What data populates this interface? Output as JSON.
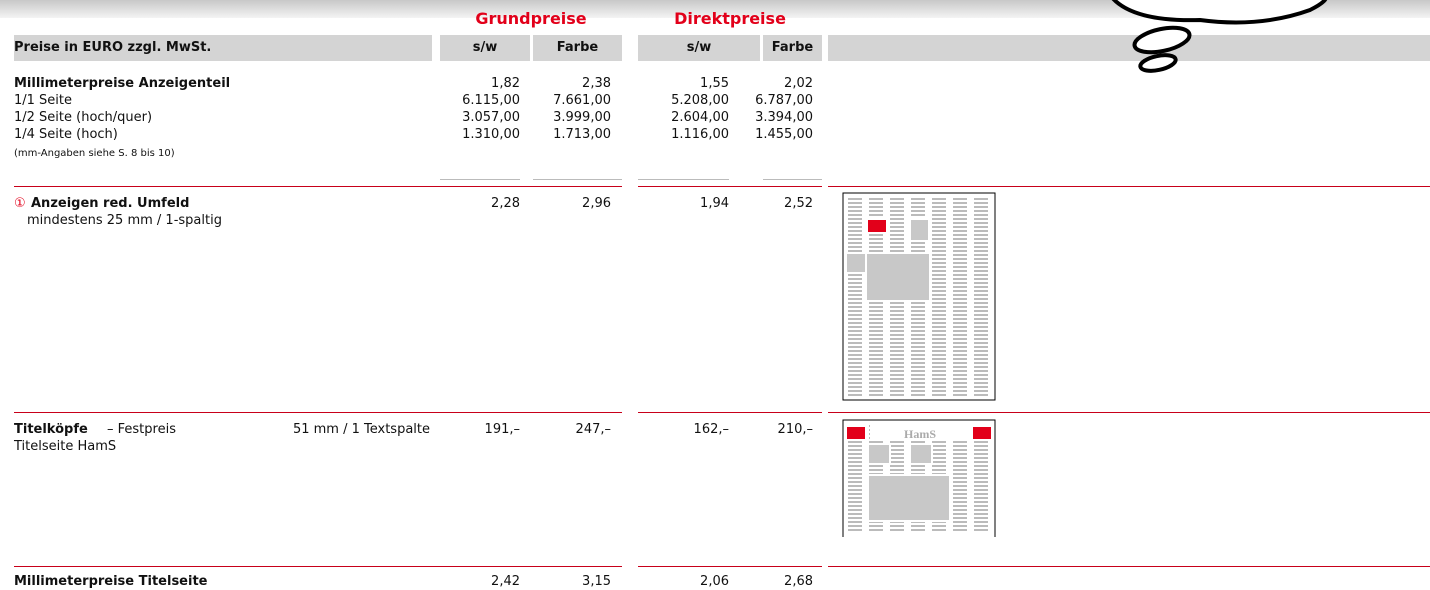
{
  "header": {
    "groups": [
      "Grundpreise",
      "Direktpreise"
    ],
    "label": "Preise in EURO zzgl. MwSt.",
    "columns": [
      "s/w",
      "Farbe",
      "s/w",
      "Farbe"
    ]
  },
  "sections": [
    {
      "rows": [
        {
          "label": "Millimeterpreise Anzeigenteil",
          "values": [
            "1,82",
            "2,38",
            "1,55",
            "2,02"
          ]
        },
        {
          "label": "1/1 Seite",
          "values": [
            "6.115,00",
            "7.661,00",
            "5.208,00",
            "6.787,00"
          ]
        },
        {
          "label": "1/2 Seite (hoch/quer)",
          "values": [
            "3.057,00",
            "3.999,00",
            "2.604,00",
            "3.394,00"
          ]
        },
        {
          "label": "1/4 Seite (hoch)",
          "values": [
            "1.310,00",
            "1.713,00",
            "1.116,00",
            "1.455,00"
          ]
        }
      ],
      "note": "(mm-Angaben siehe S. 8 bis 10)"
    },
    {
      "marker": "①",
      "title": "Anzeigen red. Umfeld",
      "subtitle": "mindestens 25 mm / 1-spaltig",
      "values": [
        "2,28",
        "2,96",
        "1,94",
        "2,52"
      ]
    },
    {
      "title": "Titelköpfe",
      "title_suffix": "– Festpreis",
      "subtitle": "Titelseite HamS",
      "size": "51 mm / 1 Textspalte",
      "values": [
        "191,–",
        "247,–",
        "162,–",
        "210,–"
      ],
      "illustration_label": "HamS"
    },
    {
      "title": "Millimeterpreise Titelseite",
      "values": [
        "2,42",
        "3,15",
        "2,06",
        "2,68"
      ]
    }
  ]
}
